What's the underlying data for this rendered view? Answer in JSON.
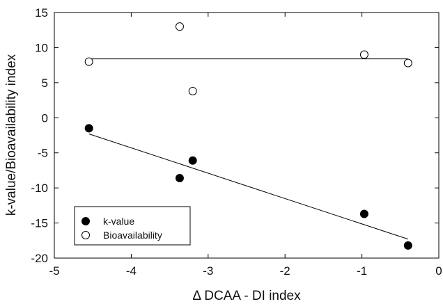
{
  "chart_data": {
    "type": "scatter",
    "xlabel": "Δ DCAA - DI index",
    "ylabel": "k-value/Bioavailability index",
    "xlim": [
      -5,
      0
    ],
    "ylim": [
      -20,
      15
    ],
    "x_ticks": [
      -5,
      -4,
      -3,
      -2,
      -1,
      0
    ],
    "y_ticks": [
      -20,
      -15,
      -10,
      -5,
      0,
      5,
      10,
      15
    ],
    "grid": false,
    "legend_position": "bottom-left",
    "series": [
      {
        "name": "k-value",
        "marker": "filled-circle",
        "color": "#000000",
        "points": [
          {
            "x": -4.55,
            "y": -1.5
          },
          {
            "x": -3.37,
            "y": -8.6
          },
          {
            "x": -3.2,
            "y": -6.1
          },
          {
            "x": -0.97,
            "y": -13.7
          },
          {
            "x": -0.4,
            "y": -18.2
          }
        ],
        "trendline": {
          "x": [
            -4.55,
            -0.4
          ],
          "y": [
            -2.3,
            -17.3
          ]
        }
      },
      {
        "name": "Bioavailability",
        "marker": "open-circle",
        "color": "#000000",
        "points": [
          {
            "x": -4.55,
            "y": 8.0
          },
          {
            "x": -3.37,
            "y": 13.0
          },
          {
            "x": -3.2,
            "y": 3.8
          },
          {
            "x": -0.97,
            "y": 9.0
          },
          {
            "x": -0.4,
            "y": 7.8
          }
        ],
        "trendline": {
          "x": [
            -4.55,
            -0.4
          ],
          "y": [
            8.4,
            8.4
          ]
        }
      }
    ]
  }
}
